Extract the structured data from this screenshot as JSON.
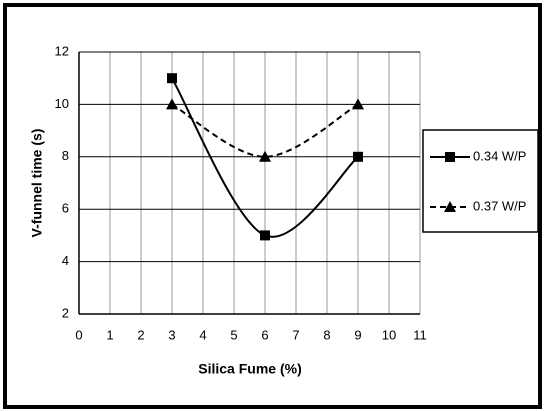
{
  "chart_data": {
    "type": "line",
    "xlabel": "Silica Fume (%)",
    "ylabel": "V-funnel time (s)",
    "xlim": [
      0,
      11
    ],
    "xticks": [
      0,
      1,
      2,
      3,
      4,
      5,
      6,
      7,
      8,
      9,
      10,
      11
    ],
    "ylim": [
      2,
      12
    ],
    "yticks": [
      2,
      4,
      6,
      8,
      10,
      12
    ],
    "grid": true,
    "legend": "right",
    "smooth": true,
    "series": [
      {
        "name": "0.34 W/P",
        "color": "#000000",
        "linestyle": "solid",
        "marker": "square",
        "x": [
          3,
          6,
          9
        ],
        "values": [
          11,
          5,
          8
        ]
      },
      {
        "name": "0.37 W/P",
        "color": "#000000",
        "linestyle": "dashed",
        "marker": "triangle",
        "x": [
          3,
          6,
          9
        ],
        "values": [
          10,
          8,
          10
        ]
      }
    ]
  }
}
